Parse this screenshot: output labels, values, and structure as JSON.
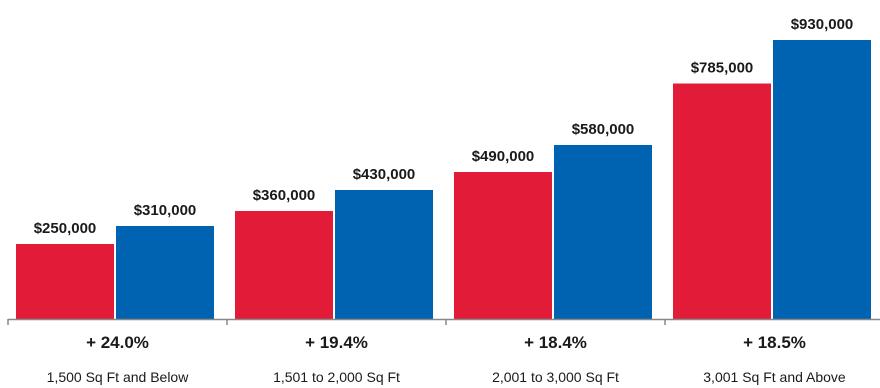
{
  "colors": {
    "series_a": "#e21c38",
    "series_b": "#0063b1",
    "axis": "#888888",
    "text": "#1a1a1a"
  },
  "chart_data": {
    "type": "bar",
    "categories": [
      "1,500 Sq Ft and Below",
      "1,501 to 2,000 Sq Ft",
      "2,001 to 3,000 Sq Ft",
      "3,001 Sq Ft and Above"
    ],
    "series": [
      {
        "values": [
          250000,
          360000,
          490000,
          785000
        ],
        "labels": [
          "$250,000",
          "$360,000",
          "$490,000",
          "$785,000"
        ]
      },
      {
        "values": [
          310000,
          430000,
          580000,
          930000
        ],
        "labels": [
          "$310,000",
          "$430,000",
          "$580,000",
          "$930,000"
        ]
      }
    ],
    "change_labels": [
      "+ 24.0%",
      "+ 19.4%",
      "+ 18.4%",
      "+ 18.5%"
    ],
    "ylim": [
      0,
      930000
    ],
    "grid": false,
    "legend": "none"
  }
}
